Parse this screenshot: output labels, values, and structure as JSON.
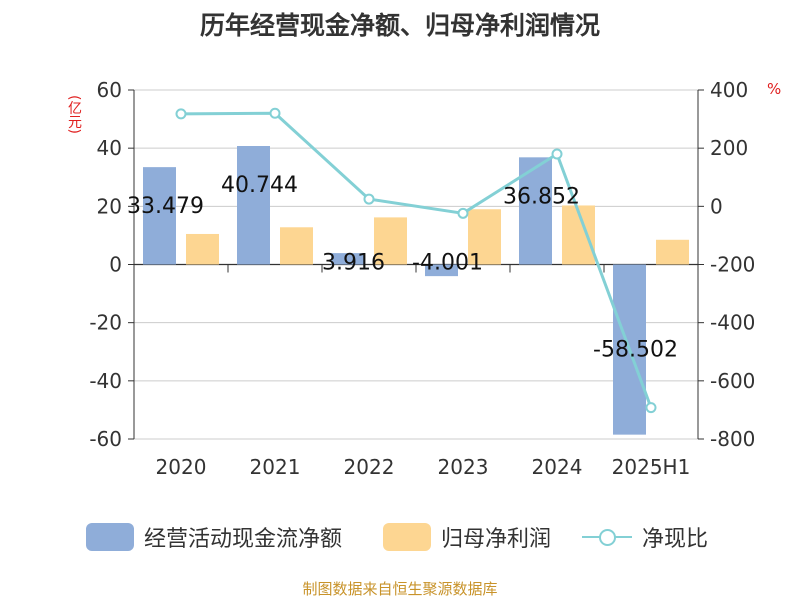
{
  "title": "历年经营现金净额、归母净利润情况",
  "source": "制图数据来自恒生聚源数据库",
  "unit_left": "(亿元)",
  "unit_right": "%",
  "colors": {
    "cash_flow": "#8fadd9",
    "net_profit": "#fdd692",
    "ratio": "#83d0d5",
    "axis": "#333333",
    "grid": "#cccccc",
    "unit": "#e02020"
  },
  "legend": [
    {
      "label": "经营活动现金流净额",
      "kind": "bar"
    },
    {
      "label": "归母净利润",
      "kind": "bar"
    },
    {
      "label": "净现比",
      "kind": "line"
    }
  ],
  "chart_data": {
    "type": "bar",
    "categories": [
      "2020",
      "2021",
      "2022",
      "2023",
      "2024",
      "2025H1"
    ],
    "series": [
      {
        "name": "经营活动现金流净额",
        "axis": "left",
        "type": "bar",
        "values": [
          33.479,
          40.744,
          3.916,
          -4.001,
          36.852,
          -58.502
        ],
        "data_labels": [
          "33.479",
          "40.744",
          "3.916",
          "-4.001",
          "36.852",
          "-58.502"
        ]
      },
      {
        "name": "归母净利润",
        "axis": "left",
        "type": "bar",
        "values": [
          10.5,
          12.8,
          16.2,
          19.0,
          20.3,
          8.5
        ]
      },
      {
        "name": "净现比",
        "axis": "right",
        "type": "line",
        "values": [
          318,
          320,
          25,
          -24,
          180,
          -692
        ]
      }
    ],
    "y_left": {
      "range": [
        -60,
        60
      ],
      "ticks": [
        "60",
        "40",
        "20",
        "0",
        "-20",
        "-40",
        "-60"
      ]
    },
    "y_right": {
      "range": [
        -800,
        400
      ],
      "ticks": [
        "400",
        "200",
        "0",
        "-200",
        "-400",
        "-600",
        "-800"
      ]
    },
    "grid": true,
    "legend_position": "bottom"
  }
}
